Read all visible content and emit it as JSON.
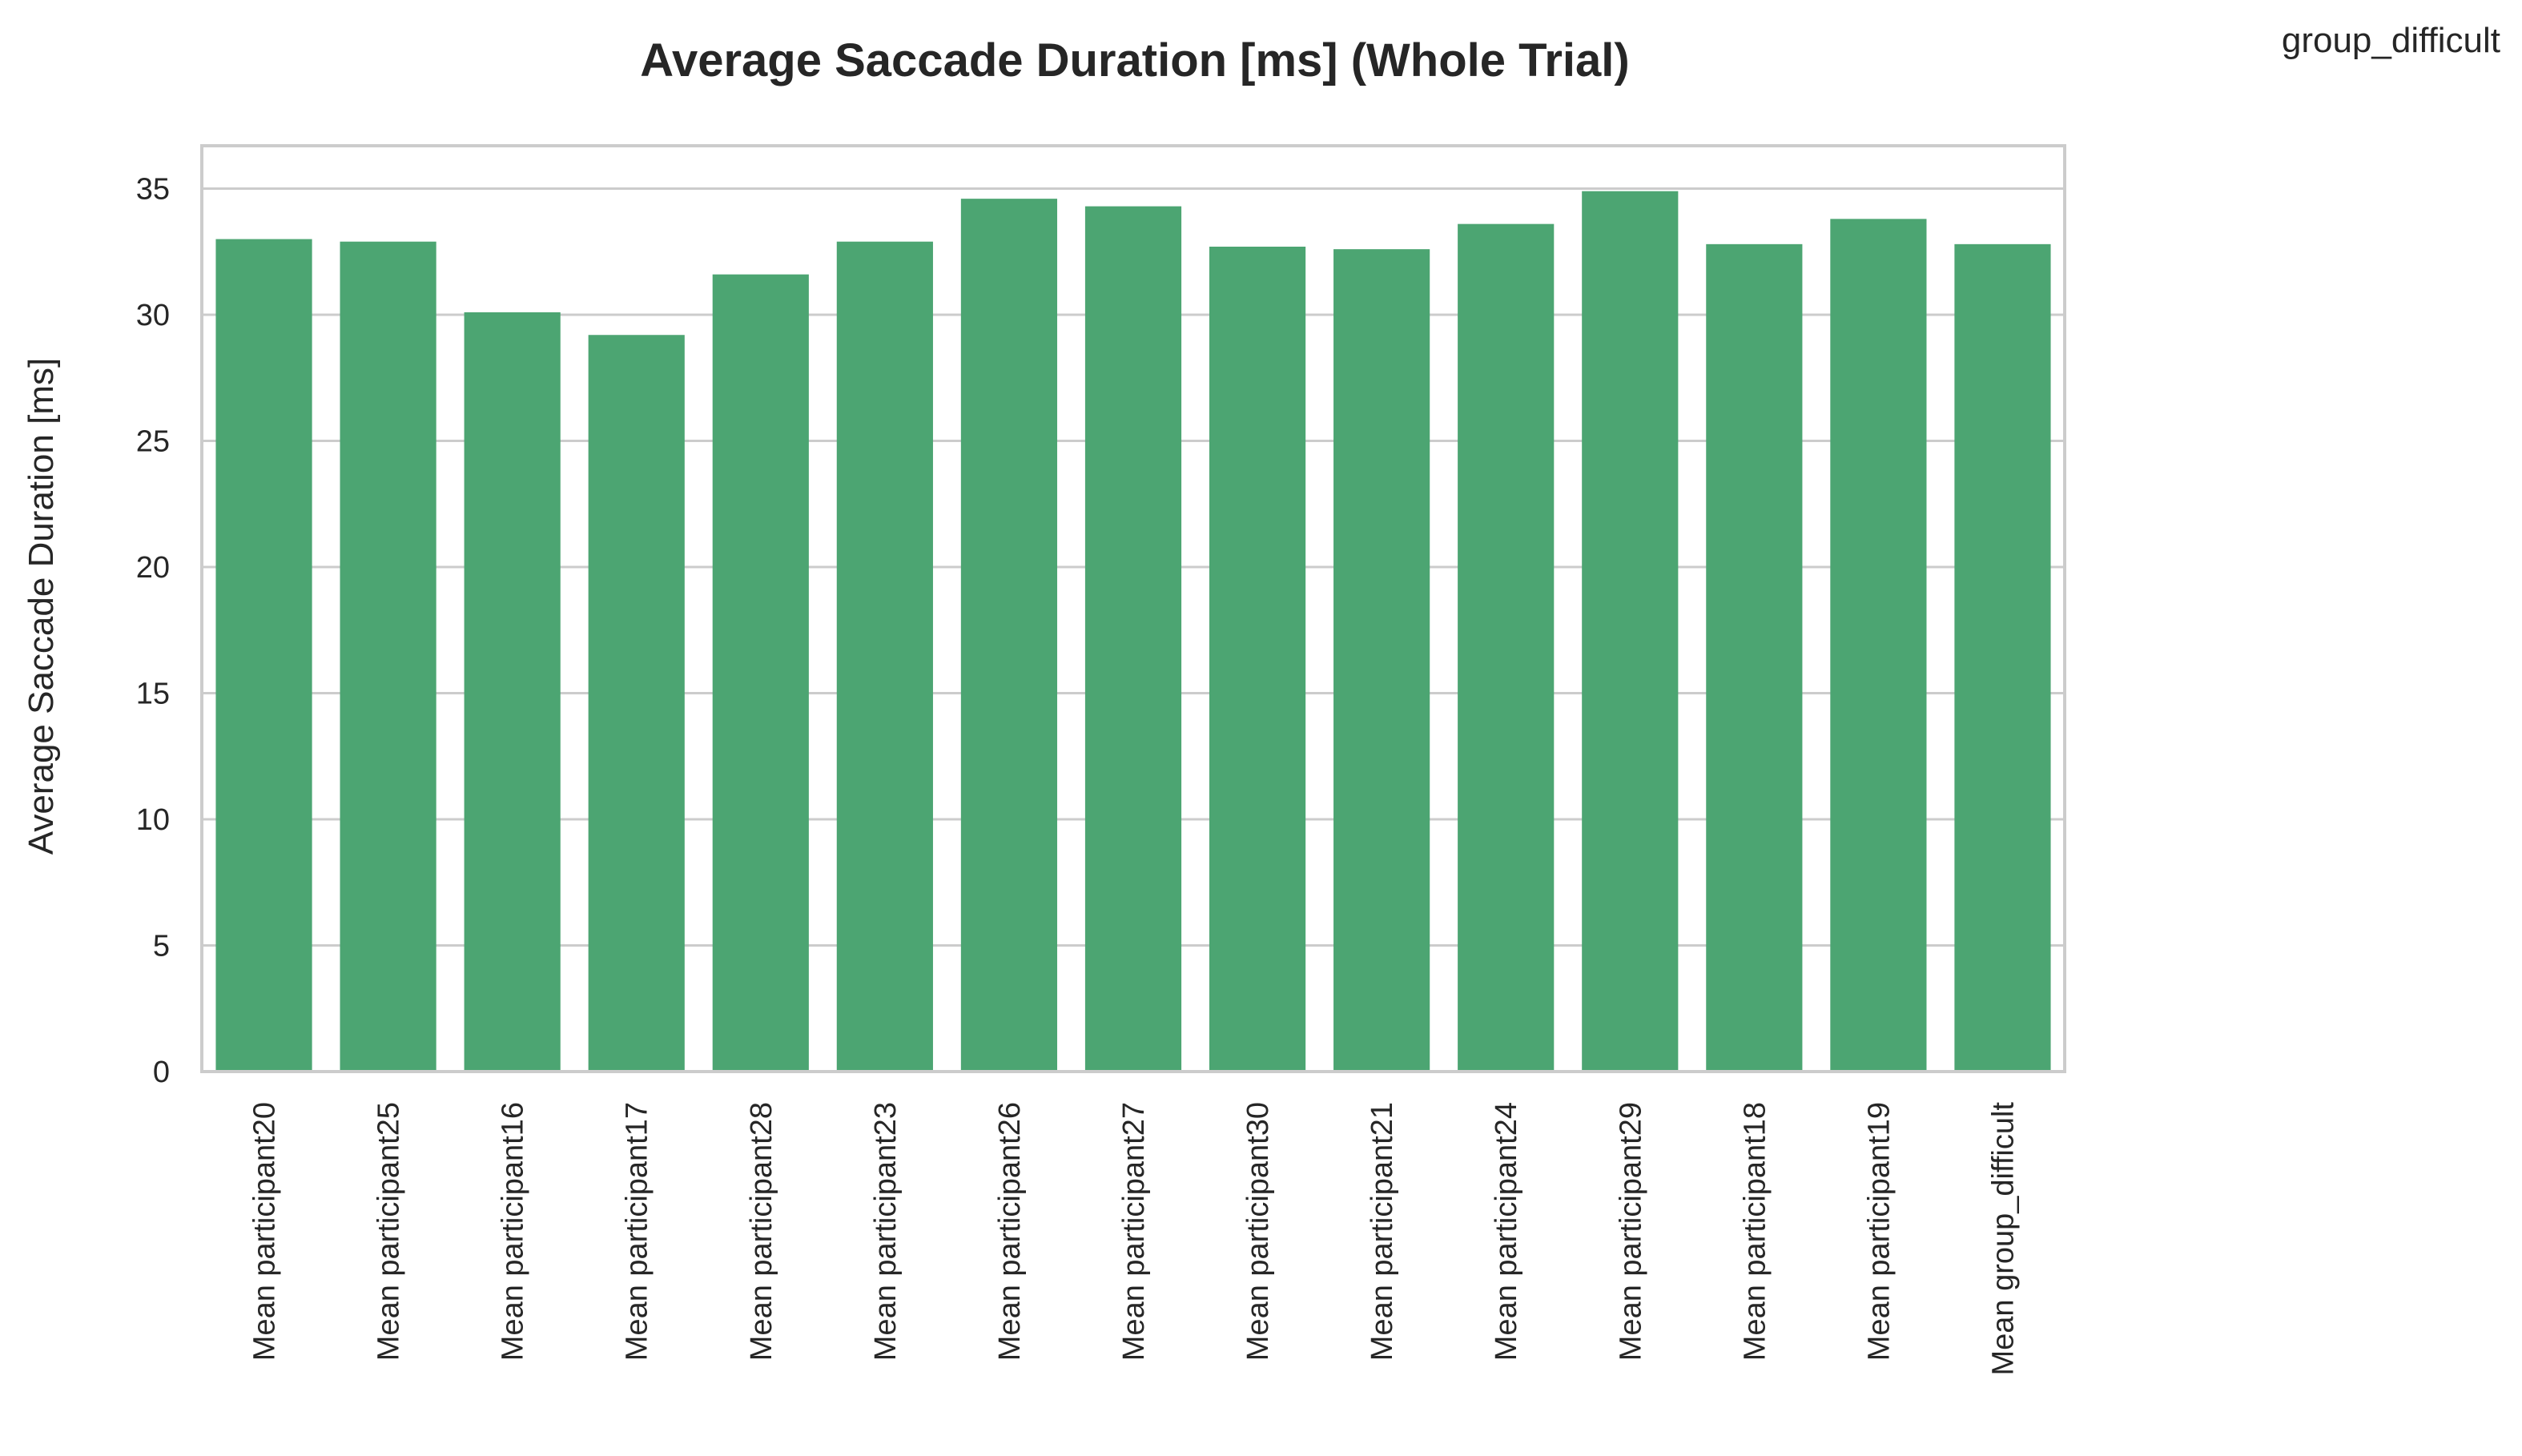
{
  "corner_label": "group_difficult",
  "chart_data": {
    "type": "bar",
    "title": "Average Saccade Duration [ms] (Whole Trial)",
    "xlabel": "",
    "ylabel": "Average Saccade Duration [ms]",
    "ylim": [
      0,
      36.7
    ],
    "yticks": [
      0,
      5,
      10,
      15,
      20,
      25,
      30,
      35
    ],
    "grid": "horizontal",
    "bar_color": "#4ca572",
    "categories": [
      "Mean participant20",
      "Mean participant25",
      "Mean participant16",
      "Mean participant17",
      "Mean participant28",
      "Mean participant23",
      "Mean participant26",
      "Mean participant27",
      "Mean participant30",
      "Mean participant21",
      "Mean participant24",
      "Mean participant29",
      "Mean participant18",
      "Mean participant19",
      "Mean group_difficult"
    ],
    "values": [
      33.0,
      32.9,
      30.1,
      29.2,
      31.6,
      32.9,
      34.6,
      34.3,
      32.7,
      32.6,
      33.6,
      34.9,
      32.8,
      33.8,
      32.8
    ]
  }
}
